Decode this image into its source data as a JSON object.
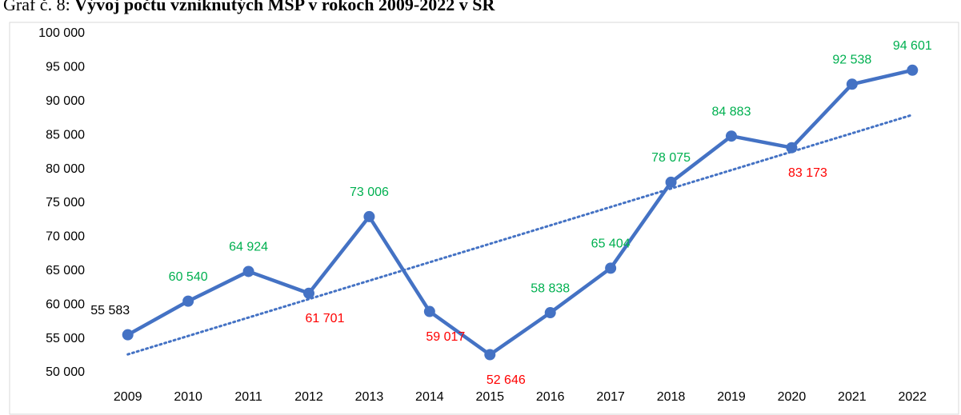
{
  "chart_data": {
    "type": "line",
    "title_prefix": "Graf č. 8:",
    "title": "Vývoj počtu vzniknutých MSP v rokoch 2009-2022 v SR",
    "categories": [
      "2009",
      "2010",
      "2011",
      "2012",
      "2013",
      "2014",
      "2015",
      "2016",
      "2017",
      "2018",
      "2019",
      "2020",
      "2021",
      "2022"
    ],
    "series": [
      {
        "name": "MSP",
        "color": "#4472c4",
        "values": [
          55583,
          60540,
          64924,
          61701,
          73006,
          59017,
          52646,
          58838,
          65404,
          78075,
          84883,
          83173,
          92538,
          94601
        ],
        "value_labels": [
          "55 583",
          "60 540",
          "64 924",
          "61 701",
          "73 006",
          "59 017",
          "52 646",
          "58 838",
          "65 404",
          "78 075",
          "84 883",
          "83 173",
          "92 538",
          "94 601"
        ],
        "label_colors": [
          "#000000",
          "#00b050",
          "#00b050",
          "#ff0000",
          "#00b050",
          "#ff0000",
          "#ff0000",
          "#00b050",
          "#00b050",
          "#00b050",
          "#00b050",
          "#ff0000",
          "#00b050",
          "#00b050"
        ]
      }
    ],
    "trendline": {
      "type": "linear",
      "color": "#4472c4",
      "style": "dotted"
    },
    "ylim": [
      50000,
      100000
    ],
    "yticks": [
      {
        "value": 50000,
        "label": "50 000"
      },
      {
        "value": 55000,
        "label": "55 000"
      },
      {
        "value": 60000,
        "label": "60 000"
      },
      {
        "value": 65000,
        "label": "65 000"
      },
      {
        "value": 70000,
        "label": "70 000"
      },
      {
        "value": 75000,
        "label": "75 000"
      },
      {
        "value": 80000,
        "label": "80 000"
      },
      {
        "value": 85000,
        "label": "85 000"
      },
      {
        "value": 90000,
        "label": "90 000"
      },
      {
        "value": 95000,
        "label": "95 000"
      },
      {
        "value": 100000,
        "label": "100 000"
      }
    ],
    "grid": false
  }
}
